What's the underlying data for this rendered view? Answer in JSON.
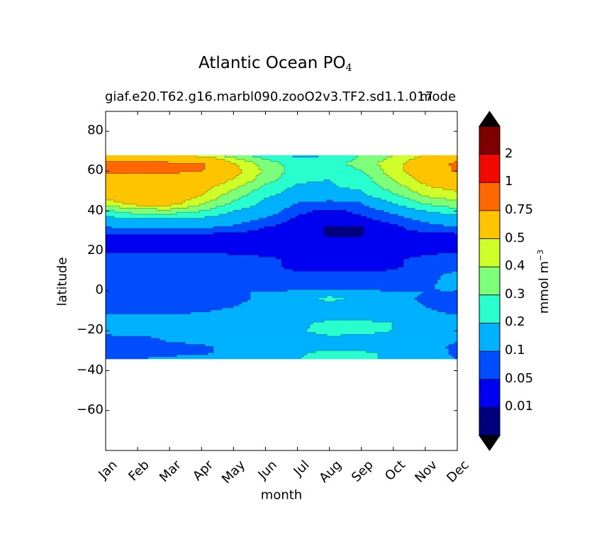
{
  "chart_data": {
    "type": "filled-contour",
    "title": "Atlantic Ocean PO",
    "title_subscript": "4",
    "subtitle_left": "giaf.e20.T62.g16.marbl090.zooO2v3.TF2.sd1.1.017",
    "subtitle_right": "mode",
    "xlabel": "month",
    "ylabel": "latitude",
    "x_categories": [
      "Jan",
      "Feb",
      "Mar",
      "Apr",
      "May",
      "Jun",
      "Jul",
      "Aug",
      "Sep",
      "Oct",
      "Nov",
      "Dec"
    ],
    "xlim": [
      0,
      11
    ],
    "ylim": [
      -80,
      90
    ],
    "yticks": [
      80,
      60,
      40,
      20,
      0,
      -20,
      -40,
      -60
    ],
    "ytick_labels": [
      "80",
      "60",
      "40",
      "20",
      "0",
      "−20",
      "−40",
      "−60"
    ],
    "data_lat_range": [
      -34,
      68
    ],
    "colorbar": {
      "label": "mmol m",
      "label_exponent": "−3",
      "levels": [
        0,
        0.01,
        0.05,
        0.1,
        0.2,
        0.3,
        0.4,
        0.5,
        0.75,
        1,
        2,
        3
      ],
      "tick_labels": [
        "0.01",
        "0.05",
        "0.1",
        "0.2",
        "0.3",
        "0.4",
        "0.5",
        "0.75",
        "1",
        "2"
      ],
      "colors": [
        "#00007f",
        "#0000f1",
        "#004dff",
        "#00b1ff",
        "#29ffce",
        "#7dff7a",
        "#ceff29",
        "#ffc400",
        "#ff6800",
        "#f10800",
        "#7f0000"
      ],
      "extend_low_color": "#000000",
      "extend_high_color": "#000000"
    },
    "profile_lats": [
      68,
      64,
      60,
      56,
      52,
      48,
      44,
      40,
      36,
      32,
      28,
      24,
      20,
      16,
      12,
      8,
      4,
      0.5,
      -0.5,
      -4,
      -8,
      -12,
      -16,
      -20,
      -24,
      -28,
      -31,
      -34
    ],
    "grid_values": [
      [
        0.55,
        0.55,
        0.5,
        0.45,
        0.35,
        0.25,
        0.18,
        0.2,
        0.3,
        0.4,
        0.5,
        0.55
      ],
      [
        0.8,
        0.8,
        0.78,
        0.78,
        0.5,
        0.35,
        0.25,
        0.25,
        0.35,
        0.45,
        0.6,
        0.8
      ],
      [
        0.8,
        0.8,
        0.78,
        0.76,
        0.55,
        0.38,
        0.25,
        0.22,
        0.3,
        0.45,
        0.6,
        0.78
      ],
      [
        0.62,
        0.65,
        0.65,
        0.6,
        0.5,
        0.35,
        0.22,
        0.2,
        0.25,
        0.4,
        0.55,
        0.6
      ],
      [
        0.6,
        0.62,
        0.6,
        0.55,
        0.42,
        0.28,
        0.18,
        0.19,
        0.22,
        0.35,
        0.48,
        0.55
      ],
      [
        0.55,
        0.58,
        0.58,
        0.5,
        0.35,
        0.22,
        0.15,
        0.15,
        0.18,
        0.28,
        0.42,
        0.45
      ],
      [
        0.45,
        0.55,
        0.56,
        0.42,
        0.28,
        0.18,
        0.1,
        0.08,
        0.1,
        0.2,
        0.32,
        0.38
      ],
      [
        0.28,
        0.35,
        0.35,
        0.3,
        0.2,
        0.14,
        0.06,
        0.04,
        0.06,
        0.12,
        0.2,
        0.25
      ],
      [
        0.16,
        0.2,
        0.2,
        0.18,
        0.14,
        0.09,
        0.04,
        0.04,
        0.04,
        0.07,
        0.12,
        0.15
      ],
      [
        0.1,
        0.12,
        0.12,
        0.11,
        0.09,
        0.05,
        0.03,
        0.007,
        0.008,
        0.04,
        0.08,
        0.1
      ],
      [
        0.04,
        0.045,
        0.045,
        0.04,
        0.035,
        0.03,
        0.02,
        0.007,
        0.008,
        0.03,
        0.035,
        0.04
      ],
      [
        0.04,
        0.04,
        0.04,
        0.04,
        0.035,
        0.03,
        0.03,
        0.03,
        0.03,
        0.03,
        0.035,
        0.04
      ],
      [
        0.045,
        0.045,
        0.045,
        0.045,
        0.04,
        0.03,
        0.03,
        0.03,
        0.03,
        0.03,
        0.04,
        0.045
      ],
      [
        0.07,
        0.07,
        0.07,
        0.07,
        0.065,
        0.06,
        0.04,
        0.04,
        0.04,
        0.045,
        0.06,
        0.07
      ],
      [
        0.07,
        0.07,
        0.07,
        0.07,
        0.065,
        0.06,
        0.04,
        0.04,
        0.04,
        0.045,
        0.06,
        0.08
      ],
      [
        0.07,
        0.07,
        0.07,
        0.07,
        0.07,
        0.065,
        0.06,
        0.06,
        0.055,
        0.06,
        0.08,
        0.12
      ],
      [
        0.08,
        0.08,
        0.08,
        0.08,
        0.08,
        0.08,
        0.08,
        0.08,
        0.08,
        0.08,
        0.09,
        0.12
      ],
      [
        0.08,
        0.08,
        0.08,
        0.08,
        0.08,
        0.08,
        0.08,
        0.08,
        0.08,
        0.08,
        0.09,
        0.12
      ],
      [
        0.07,
        0.07,
        0.07,
        0.07,
        0.08,
        0.12,
        0.15,
        0.17,
        0.16,
        0.13,
        0.1,
        0.08
      ],
      [
        0.07,
        0.07,
        0.07,
        0.07,
        0.08,
        0.12,
        0.16,
        0.22,
        0.18,
        0.12,
        0.09,
        0.07
      ],
      [
        0.08,
        0.08,
        0.08,
        0.08,
        0.1,
        0.13,
        0.15,
        0.16,
        0.15,
        0.13,
        0.1,
        0.07
      ],
      [
        0.1,
        0.1,
        0.1,
        0.11,
        0.13,
        0.14,
        0.15,
        0.16,
        0.16,
        0.14,
        0.12,
        0.1
      ],
      [
        0.12,
        0.12,
        0.12,
        0.13,
        0.14,
        0.15,
        0.18,
        0.22,
        0.22,
        0.2,
        0.16,
        0.13
      ],
      [
        0.15,
        0.15,
        0.15,
        0.15,
        0.16,
        0.17,
        0.19,
        0.23,
        0.22,
        0.2,
        0.18,
        0.15
      ],
      [
        0.06,
        0.07,
        0.12,
        0.14,
        0.15,
        0.16,
        0.17,
        0.18,
        0.18,
        0.17,
        0.15,
        0.12
      ],
      [
        0.07,
        0.07,
        0.07,
        0.09,
        0.12,
        0.14,
        0.16,
        0.17,
        0.17,
        0.16,
        0.14,
        0.08
      ],
      [
        0.08,
        0.07,
        0.07,
        0.08,
        0.13,
        0.16,
        0.19,
        0.22,
        0.21,
        0.19,
        0.15,
        0.08
      ],
      [
        0.1,
        0.1,
        0.12,
        0.16,
        0.18,
        0.19,
        0.2,
        0.21,
        0.21,
        0.19,
        0.16,
        0.1
      ]
    ]
  }
}
